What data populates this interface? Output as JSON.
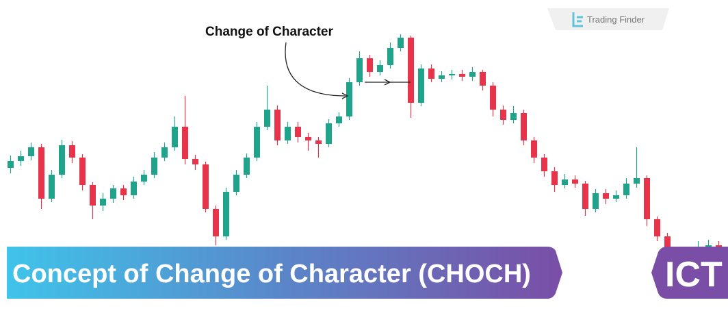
{
  "chart_data": {
    "type": "candlestick",
    "title": "Concept of Change of Character (CHOCH)",
    "badge": "ICT",
    "logo": "Trading Finder",
    "annotation": "Change of Character",
    "up_color": "#1fa38a",
    "down_color": "#e8344b",
    "ylim": [
      0,
      470
    ],
    "open": [
      225,
      235,
      242,
      255,
      180,
      215,
      258,
      240,
      200,
      170,
      180,
      195,
      185,
      205,
      215,
      240,
      255,
      285,
      238,
      230,
      165,
      125,
      190,
      215,
      240,
      285,
      310,
      265,
      285,
      270,
      265,
      260,
      290,
      300,
      350,
      385,
      365,
      375,
      400,
      415,
      320,
      370,
      355,
      360,
      362,
      358,
      365,
      345,
      310,
      295,
      305,
      265,
      240,
      220,
      200,
      208,
      202,
      165,
      188,
      180,
      185,
      202,
      210,
      150,
      125,
      90,
      70,
      80,
      110,
      112
    ],
    "high": [
      243,
      250,
      262,
      260,
      222,
      266,
      264,
      245,
      204,
      188,
      200,
      200,
      212,
      222,
      248,
      262,
      300,
      330,
      244,
      234,
      170,
      196,
      222,
      246,
      292,
      345,
      316,
      292,
      292,
      276,
      270,
      296,
      306,
      356,
      395,
      390,
      382,
      408,
      420,
      418,
      376,
      376,
      366,
      368,
      368,
      372,
      368,
      350,
      316,
      315,
      310,
      270,
      245,
      226,
      216,
      214,
      206,
      194,
      194,
      192,
      210,
      255,
      214,
      154,
      130,
      95,
      88,
      118,
      120,
      118
    ],
    "low": [
      217,
      228,
      236,
      165,
      175,
      210,
      232,
      192,
      150,
      162,
      174,
      178,
      180,
      200,
      210,
      235,
      250,
      230,
      222,
      160,
      112,
      120,
      185,
      210,
      235,
      280,
      258,
      260,
      262,
      250,
      240,
      255,
      285,
      295,
      345,
      358,
      360,
      370,
      395,
      298,
      315,
      350,
      350,
      354,
      352,
      352,
      338,
      300,
      288,
      290,
      258,
      232,
      212,
      190,
      195,
      196,
      155,
      160,
      172,
      175,
      180,
      196,
      140,
      118,
      80,
      60,
      62,
      75,
      104,
      98
    ],
    "close": [
      235,
      242,
      255,
      180,
      215,
      258,
      240,
      200,
      170,
      180,
      195,
      185,
      205,
      215,
      240,
      255,
      285,
      238,
      230,
      165,
      125,
      190,
      215,
      240,
      285,
      310,
      265,
      285,
      270,
      265,
      260,
      290,
      300,
      350,
      385,
      365,
      375,
      400,
      415,
      320,
      370,
      355,
      360,
      362,
      358,
      365,
      345,
      310,
      295,
      305,
      265,
      240,
      220,
      200,
      208,
      202,
      165,
      188,
      180,
      185,
      202,
      210,
      150,
      125,
      90,
      70,
      80,
      110,
      112,
      105
    ]
  }
}
